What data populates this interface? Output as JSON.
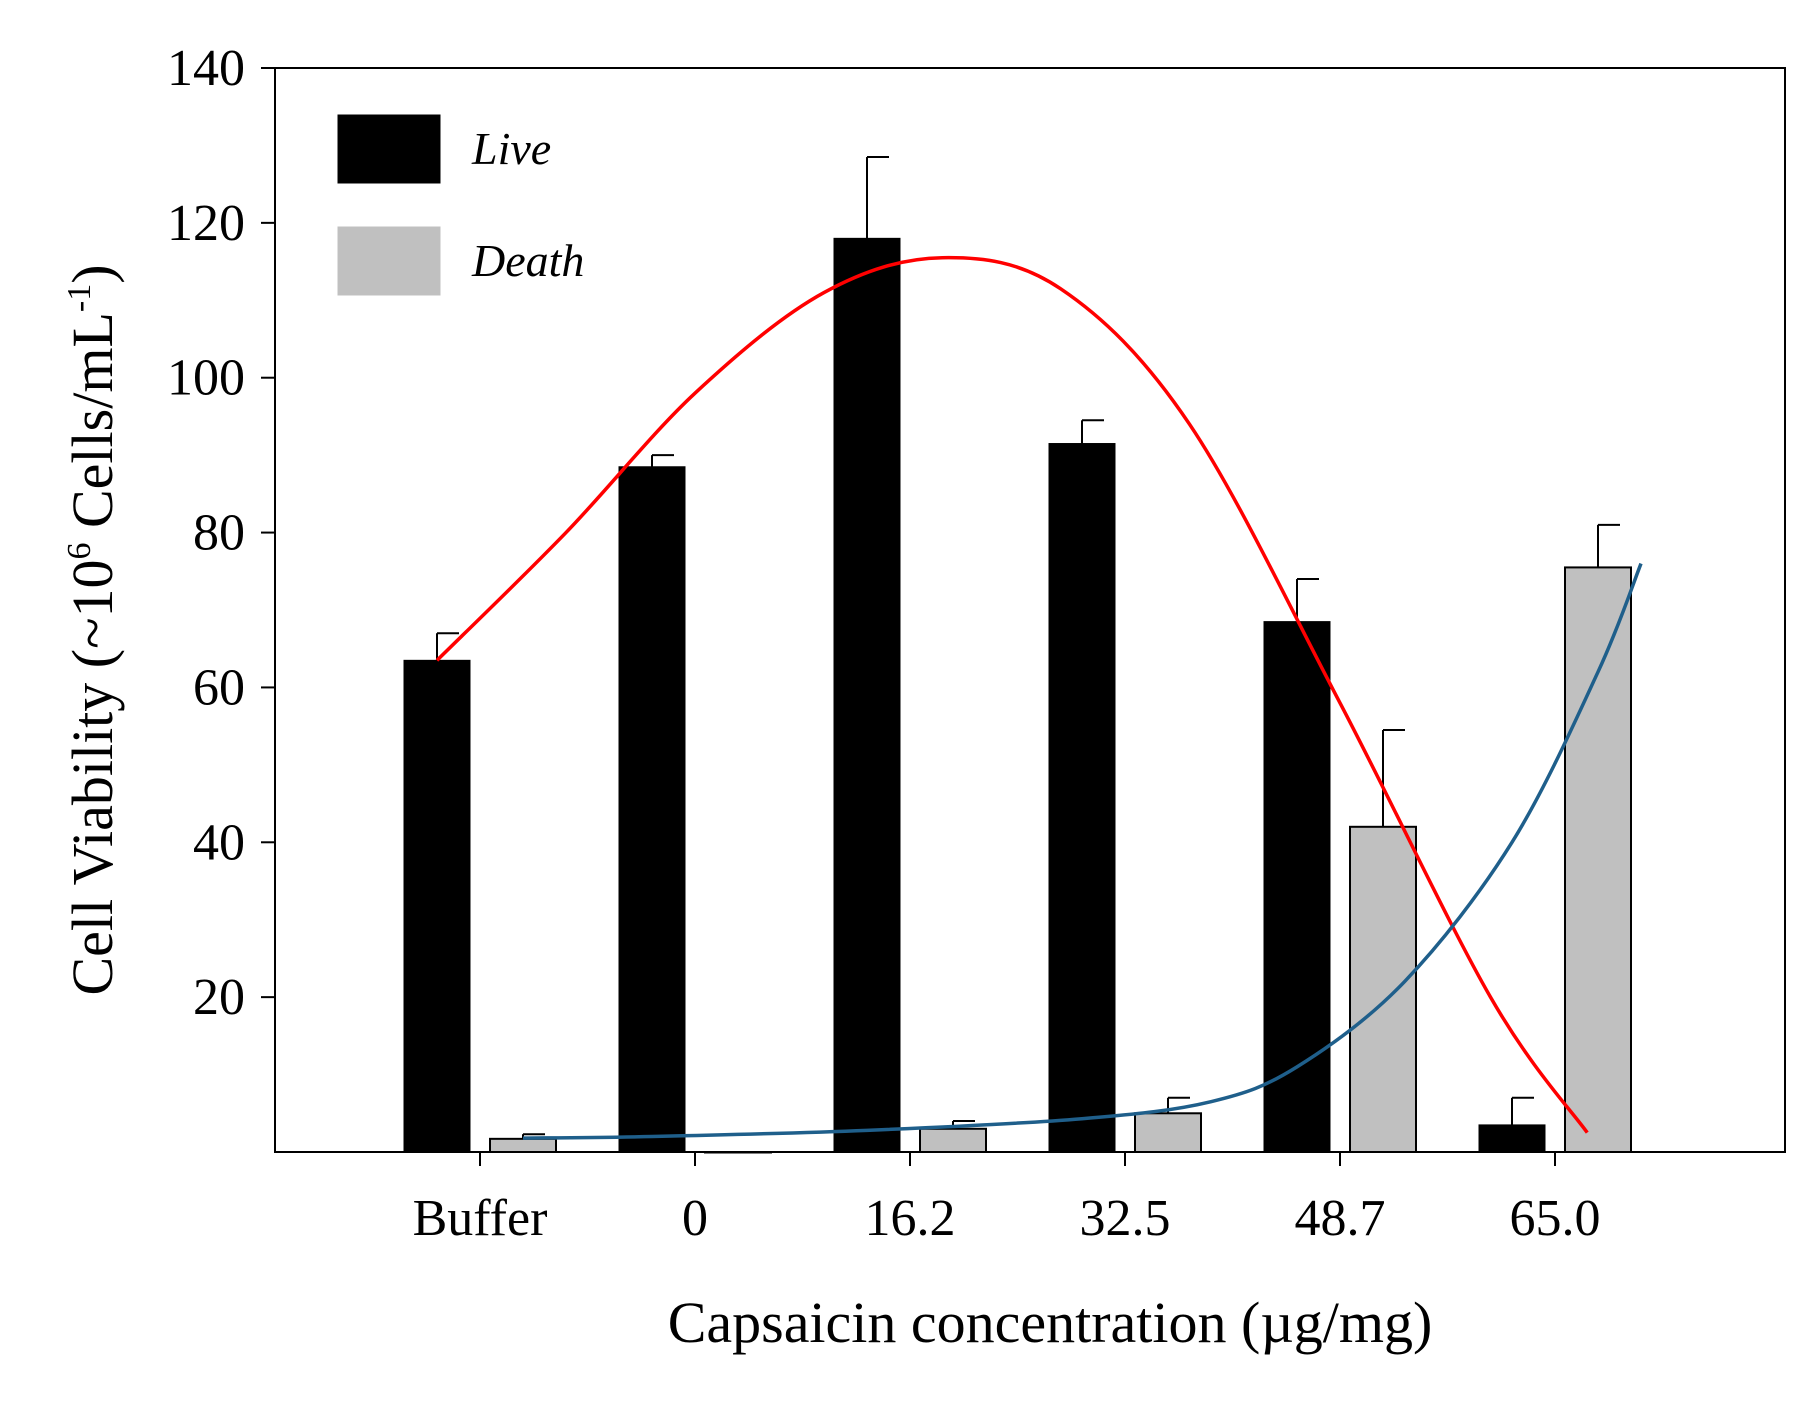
{
  "chart_data": {
    "type": "bar",
    "title": "",
    "xlabel": "Capsaicin concentration (µg/mg)",
    "ylabel": {
      "prefix": "Cell Viability  (~10",
      "sup1": "6",
      "middle": " Cells/mL",
      "sup2": "-1",
      "suffix": ")"
    },
    "ylim": [
      0,
      140
    ],
    "yticks": [
      "20",
      "40",
      "60",
      "80",
      "100",
      "120",
      "140"
    ],
    "categories": [
      "Buffer",
      "0",
      "16.2",
      "32.5",
      "48.7",
      "65.0"
    ],
    "series": [
      {
        "name": "Live",
        "color": "#000000",
        "values": [
          63.5,
          88.5,
          118,
          91.5,
          68.5,
          3.5
        ],
        "errors": [
          3.5,
          1.5,
          10.5,
          3,
          5.5,
          3.5
        ]
      },
      {
        "name": "Death",
        "color": "#c0c0c0",
        "values": [
          1.7,
          0,
          3,
          5,
          42,
          75.5
        ],
        "errors": [
          0.6,
          0,
          1,
          2,
          12.5,
          5.5
        ]
      }
    ],
    "trend_lines": [
      {
        "name": "Live trend",
        "color": "#ff0000",
        "points": [
          [
            0,
            63.5
          ],
          [
            0.6,
            80
          ],
          [
            1.2,
            98
          ],
          [
            1.8,
            111
          ],
          [
            2.35,
            115.5
          ],
          [
            2.9,
            111.5
          ],
          [
            3.5,
            94
          ],
          [
            4.2,
            58
          ],
          [
            4.9,
            20
          ],
          [
            5.35,
            2.5
          ]
        ]
      },
      {
        "name": "Death trend",
        "color": "#1f5f8b",
        "points": [
          [
            0.4,
            1.8
          ],
          [
            1.0,
            2.0
          ],
          [
            2.0,
            2.8
          ],
          [
            3.0,
            4.3
          ],
          [
            3.6,
            6.5
          ],
          [
            4.0,
            11
          ],
          [
            4.5,
            22
          ],
          [
            5.0,
            40
          ],
          [
            5.4,
            62
          ],
          [
            5.6,
            76
          ]
        ]
      }
    ],
    "legend": {
      "position": "top-left",
      "entries": [
        "Live",
        "Death"
      ]
    },
    "grid": false
  }
}
